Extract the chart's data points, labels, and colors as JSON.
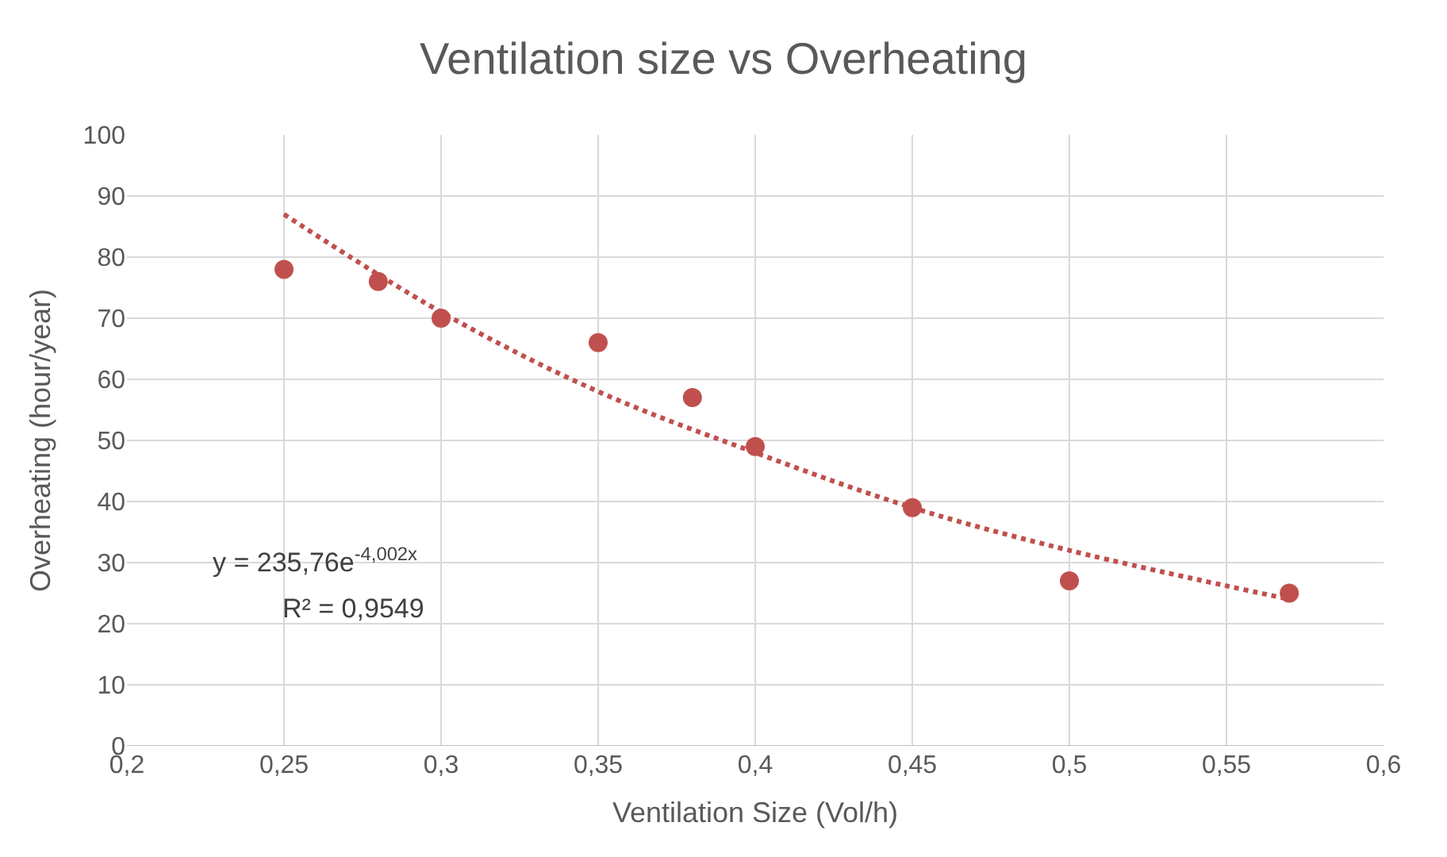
{
  "chart_data": {
    "type": "scatter",
    "title": "Ventilation size vs Overheating",
    "xlabel": "Ventilation Size (Vol/h)",
    "ylabel": "Overheating (hour/year)",
    "series": [
      {
        "color": "#c0504d",
        "marker": "circle",
        "x": [
          0.25,
          0.28,
          0.3,
          0.35,
          0.38,
          0.4,
          0.45,
          0.5,
          0.57
        ],
        "values": [
          78,
          76,
          70,
          66,
          57,
          49,
          39,
          27,
          25
        ]
      },
      {
        "type": "line",
        "color": "#c0504d",
        "line_style": "dotted",
        "marker": "none",
        "x": [
          0.25,
          0.3,
          0.35,
          0.4,
          0.45,
          0.5,
          0.57
        ],
        "values": [
          87,
          71,
          58,
          48,
          39,
          32,
          24
        ]
      }
    ],
    "annotations": [
      "y = 235,76e$^{-4,002x}$",
      "R² = 0,9549"
    ],
    "xlim": [
      0.2,
      0.6
    ],
    "xticks": [
      {
        "value": 0.2,
        "label": "0,2"
      },
      {
        "value": 0.25,
        "label": "0,25"
      },
      {
        "value": 0.3,
        "label": "0,3"
      },
      {
        "value": 0.35,
        "label": "0,35"
      },
      {
        "value": 0.4,
        "label": "0,4"
      },
      {
        "value": 0.45,
        "label": "0,45"
      },
      {
        "value": 0.5,
        "label": "0,5"
      },
      {
        "value": 0.55,
        "label": "0,55"
      },
      {
        "value": 0.6,
        "label": "0,6"
      }
    ],
    "ylim": [
      0,
      100
    ],
    "yticks": [
      0,
      10,
      20,
      30,
      40,
      50,
      60,
      70,
      80,
      90,
      100
    ],
    "grid": true
  }
}
